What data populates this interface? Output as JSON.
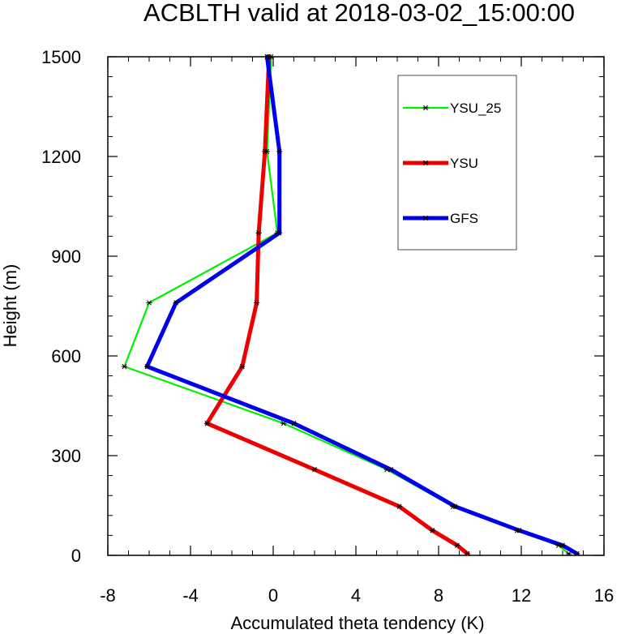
{
  "chart_data": {
    "type": "line",
    "title": "ACBLTH valid at 2018-03-02_15:00:00",
    "xlabel": "Accumulated theta tendency (K)",
    "ylabel": "Height (m)",
    "xlim": [
      -8,
      16
    ],
    "ylim": [
      0,
      1500
    ],
    "xticks": [
      -8,
      -4,
      0,
      4,
      8,
      12,
      16
    ],
    "yticks": [
      0,
      300,
      600,
      900,
      1200,
      1500
    ],
    "xtick_labels": [
      "-8",
      "-4",
      "0",
      "4",
      "8",
      "12",
      "16"
    ],
    "ytick_labels": [
      "0",
      "300",
      "600",
      "900",
      "1200",
      "1500"
    ],
    "legend_position": "top-right",
    "series": [
      {
        "name": "YSU_25",
        "color": "#00ee00",
        "line_width": "thin",
        "x": [
          14.3,
          13.8,
          11.8,
          8.7,
          5.5,
          0.5,
          -7.2,
          -6.0,
          0.2,
          -0.3,
          -0.1
        ],
        "y": [
          5,
          30,
          75,
          147,
          258,
          397,
          568,
          760,
          970,
          1215,
          1500
        ]
      },
      {
        "name": "YSU",
        "color": "#ee0000",
        "line_width": "thick",
        "x": [
          9.4,
          8.9,
          7.7,
          6.1,
          2.0,
          -3.2,
          -1.5,
          -0.8,
          -0.7,
          -0.4,
          -0.2
        ],
        "y": [
          5,
          30,
          75,
          147,
          258,
          397,
          568,
          760,
          970,
          1215,
          1500
        ]
      },
      {
        "name": "GFS",
        "color": "#0000ee",
        "line_width": "thick",
        "x": [
          14.7,
          14.0,
          11.9,
          8.8,
          5.7,
          1.0,
          -6.1,
          -4.7,
          0.3,
          0.3,
          -0.3
        ],
        "y": [
          5,
          30,
          75,
          147,
          258,
          397,
          568,
          760,
          970,
          1215,
          1500
        ]
      }
    ]
  }
}
